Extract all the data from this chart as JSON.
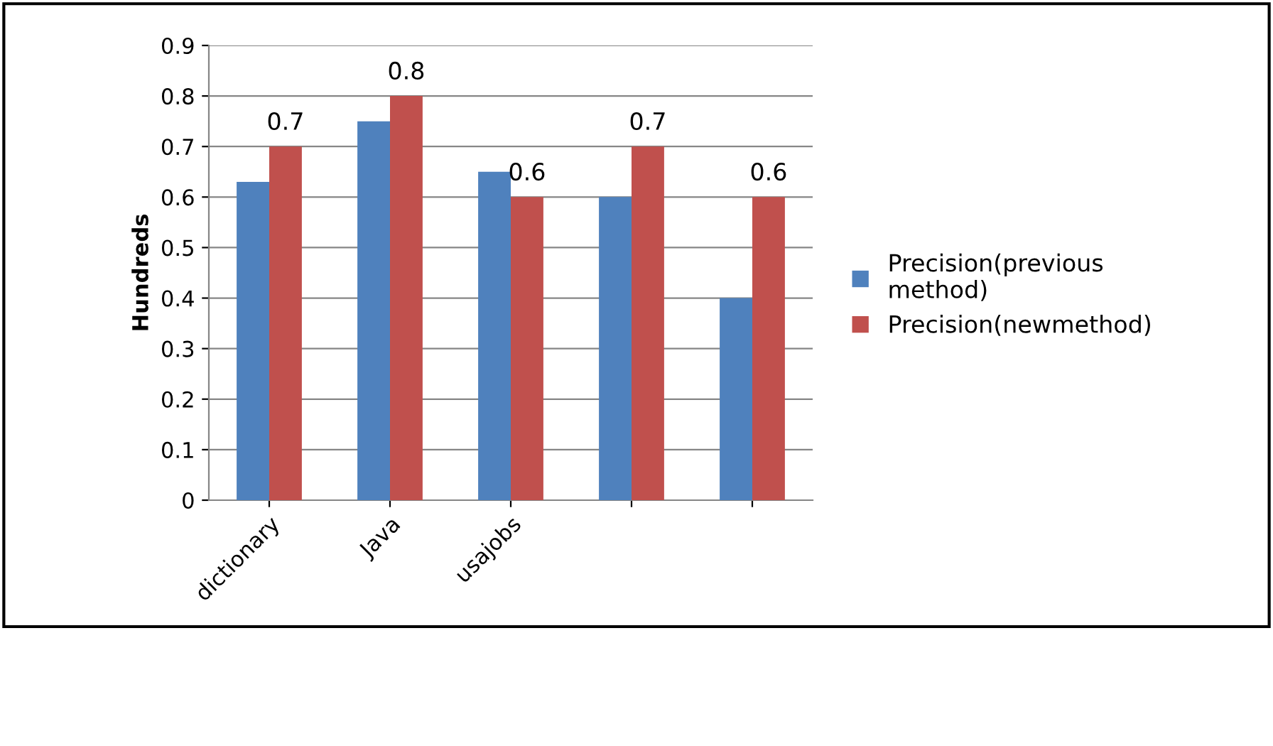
{
  "chart_data": {
    "type": "bar",
    "ylabel": "Hundreds",
    "categories": [
      "dictionary",
      "Java",
      "usajobs",
      null,
      null
    ],
    "series": [
      {
        "name": "Precision(previous method)",
        "color": "#4f81bd",
        "values": [
          0.63,
          0.75,
          0.65,
          0.6,
          0.4
        ]
      },
      {
        "name": "Precision(newmethod)",
        "color": "#c0504d",
        "values": [
          0.7,
          0.8,
          0.6,
          0.7,
          0.6
        ],
        "value_labels": [
          "0.7",
          "0.8",
          "0.6",
          "0.7",
          "0.6"
        ]
      }
    ],
    "ylim": [
      0,
      0.9
    ],
    "yticks": [
      0,
      0.1,
      0.2,
      0.3,
      0.4,
      0.5,
      0.6,
      0.7,
      0.8,
      0.9
    ],
    "grid": "y",
    "legend": "right"
  }
}
